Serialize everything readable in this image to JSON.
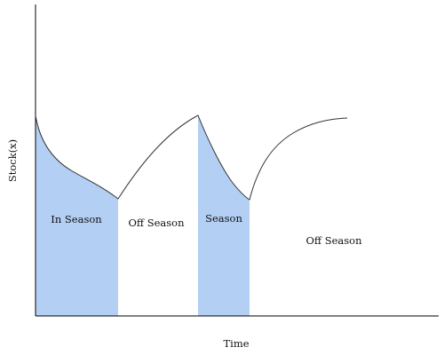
{
  "diagram": {
    "x_axis_label": "Time",
    "y_axis_label": "Stock(x)",
    "segments": [
      {
        "label": "In Season",
        "shaded": true
      },
      {
        "label": "Off Season",
        "shaded": false
      },
      {
        "label": "Season",
        "shaded": true
      },
      {
        "label": "Off Season",
        "shaded": false
      }
    ],
    "colors": {
      "shade": "#b3cff4",
      "curve": "#333333",
      "axes": "#000000",
      "text": "#111111"
    }
  }
}
